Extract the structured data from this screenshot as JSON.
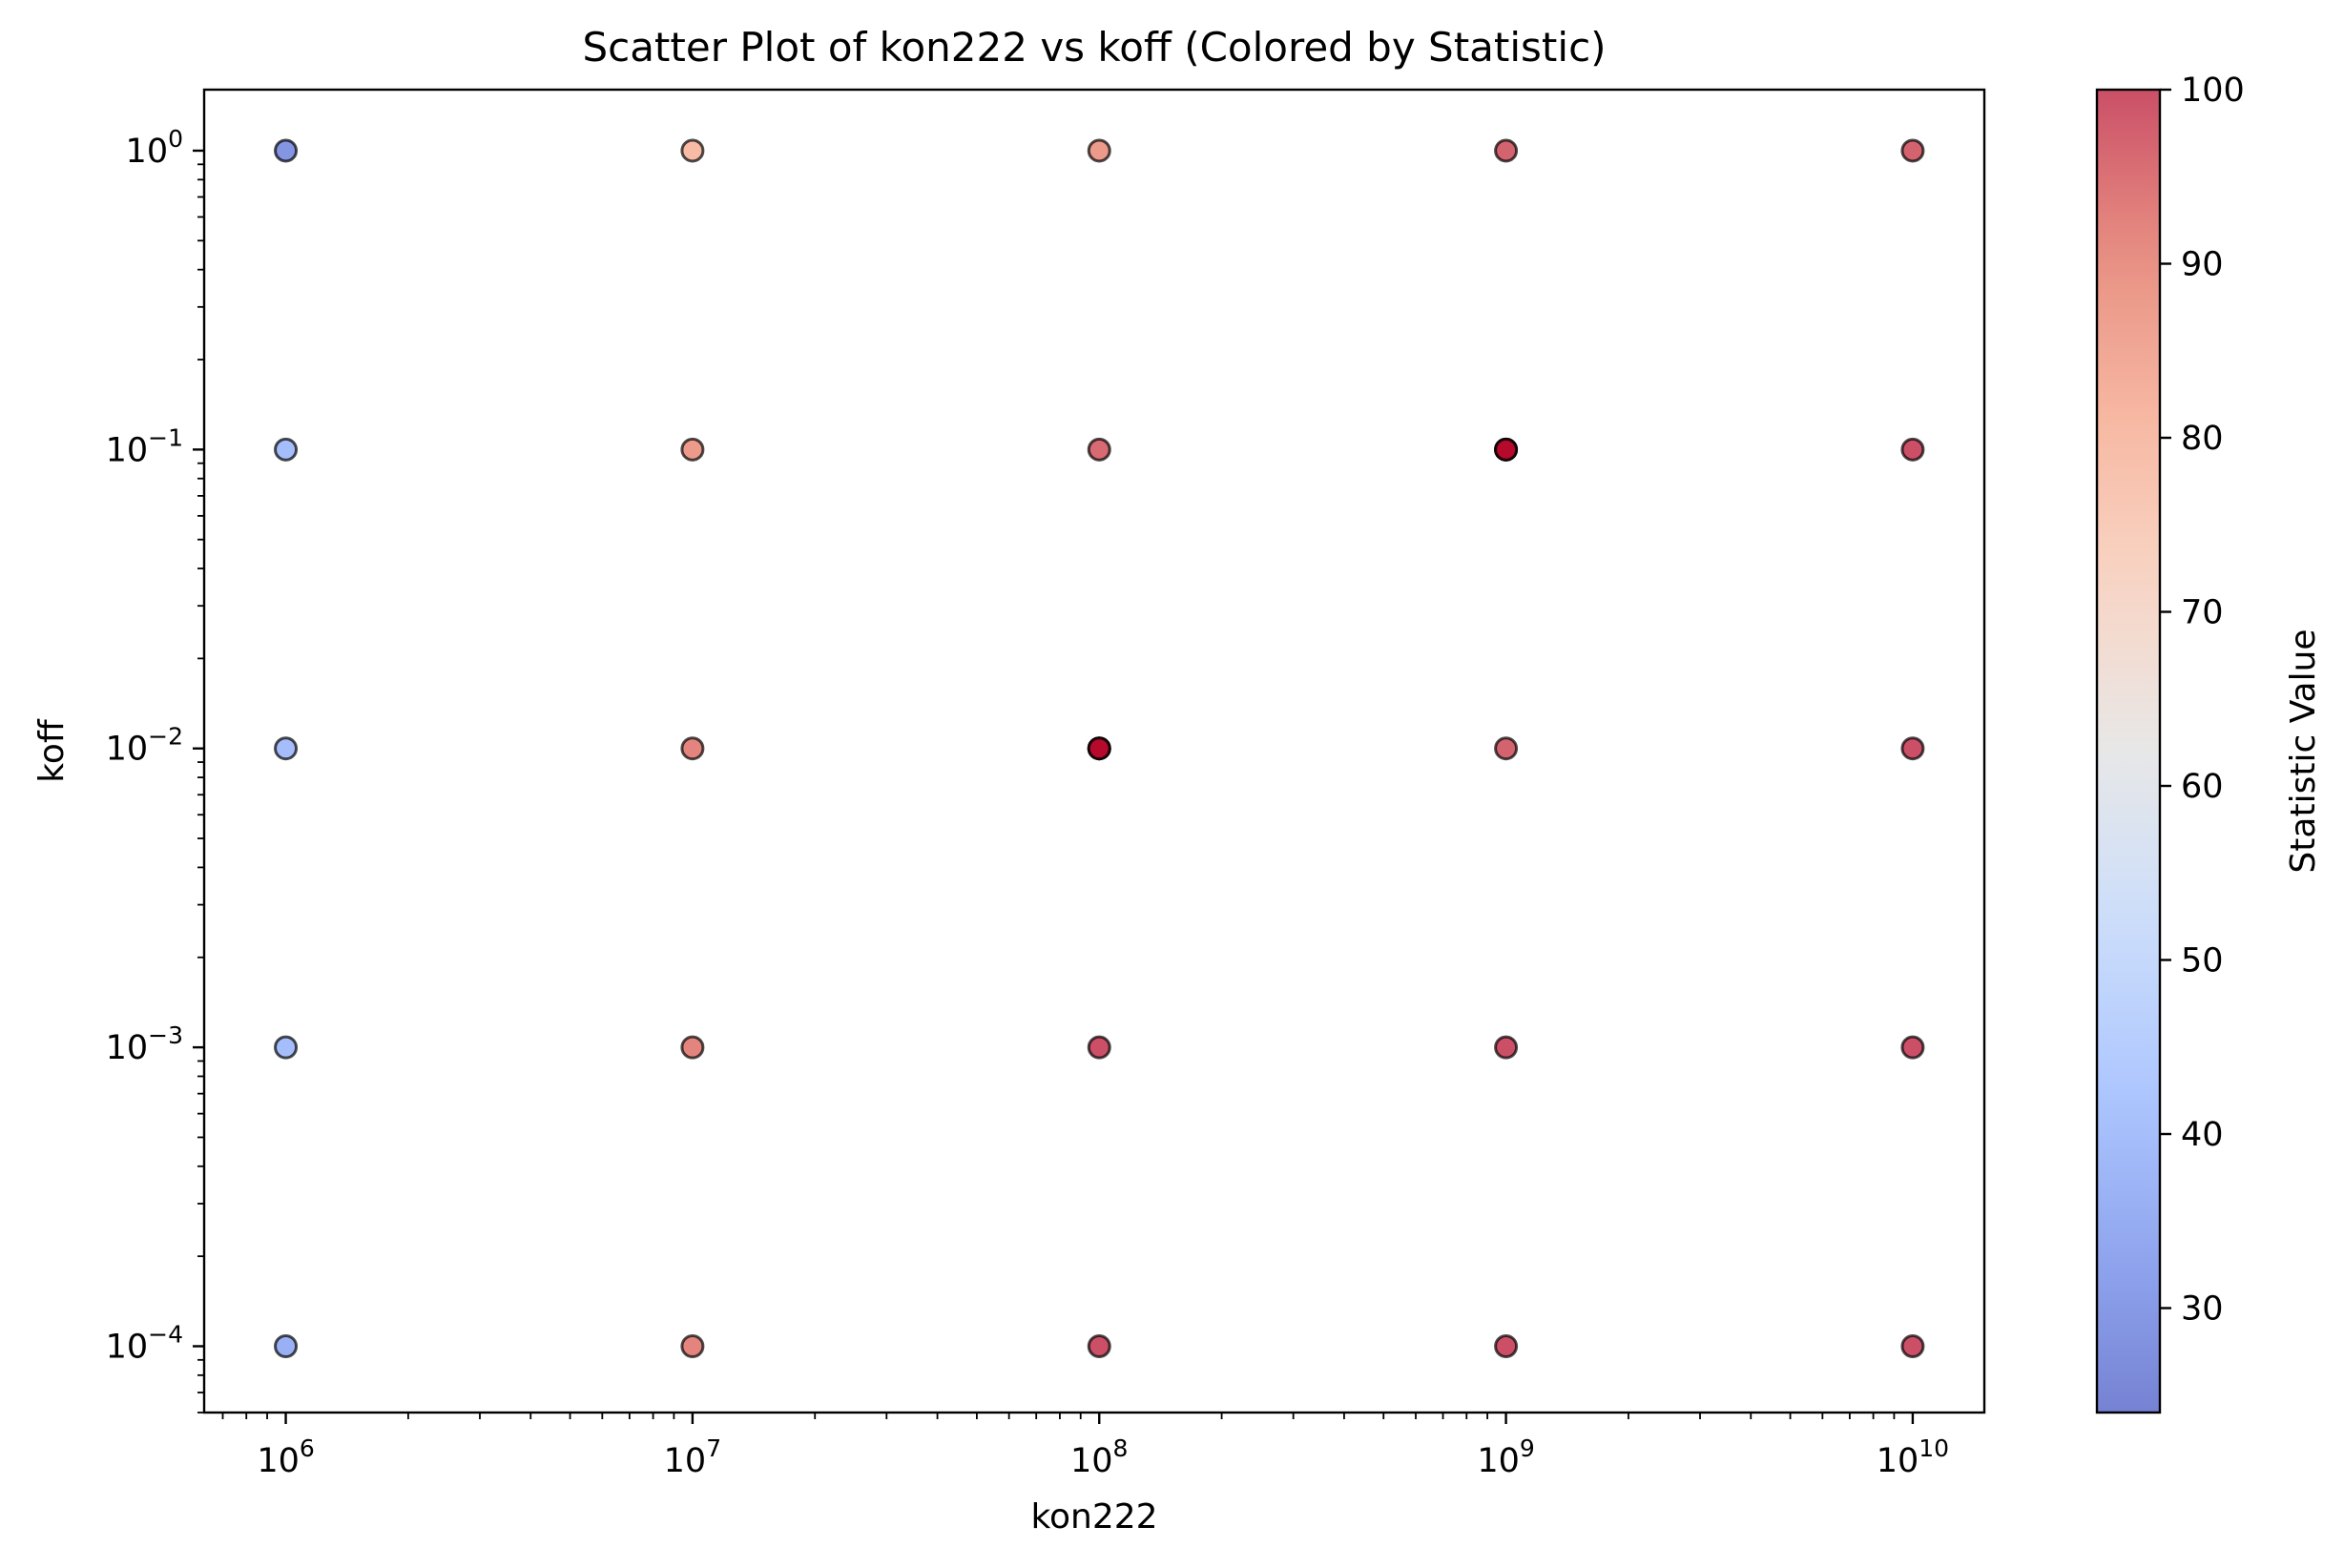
{
  "chart_data": {
    "type": "scatter",
    "title": "Scatter Plot of kon222 vs koff (Colored by Statistic)",
    "xlabel": "kon222",
    "ylabel": "koff",
    "xscale": "log",
    "yscale": "log",
    "xlim": [
      630000,
      15000000000
    ],
    "ylim": [
      6e-05,
      1.6
    ],
    "grid": false,
    "x_ticks": [
      {
        "value": 1000000,
        "base": "10",
        "exp": "6"
      },
      {
        "value": 10000000,
        "base": "10",
        "exp": "7"
      },
      {
        "value": 100000000,
        "base": "10",
        "exp": "8"
      },
      {
        "value": 1000000000,
        "base": "10",
        "exp": "9"
      },
      {
        "value": 10000000000,
        "base": "10",
        "exp": "10"
      }
    ],
    "y_ticks": [
      {
        "value": 1,
        "base": "10",
        "exp": "0"
      },
      {
        "value": 0.1,
        "base": "10",
        "exp": "−1"
      },
      {
        "value": 0.01,
        "base": "10",
        "exp": "−2"
      },
      {
        "value": 0.001,
        "base": "10",
        "exp": "−3"
      },
      {
        "value": 0.0001,
        "base": "10",
        "exp": "−4"
      }
    ],
    "points": [
      {
        "x": 1000000,
        "y": 1,
        "stat": 29
      },
      {
        "x": 1000000,
        "y": 0.1,
        "stat": 40
      },
      {
        "x": 1000000,
        "y": 0.01,
        "stat": 40
      },
      {
        "x": 1000000,
        "y": 0.001,
        "stat": 40
      },
      {
        "x": 1000000,
        "y": 0.0001,
        "stat": 36
      },
      {
        "x": 10000000,
        "y": 1,
        "stat": 80
      },
      {
        "x": 10000000,
        "y": 0.1,
        "stat": 88
      },
      {
        "x": 10000000,
        "y": 0.01,
        "stat": 92
      },
      {
        "x": 10000000,
        "y": 0.001,
        "stat": 92
      },
      {
        "x": 10000000,
        "y": 0.0001,
        "stat": 92
      },
      {
        "x": 100000000,
        "y": 1,
        "stat": 88
      },
      {
        "x": 100000000,
        "y": 0.1,
        "stat": 96
      },
      {
        "x": 100000000,
        "y": 0.01,
        "stat": 100
      },
      {
        "x": 100000000,
        "y": 0.001,
        "stat": 100
      },
      {
        "x": 100000000,
        "y": 0.0001,
        "stat": 100
      },
      {
        "x": 1000000000,
        "y": 1,
        "stat": 97
      },
      {
        "x": 1000000000,
        "y": 0.1,
        "stat": 100
      },
      {
        "x": 1000000000,
        "y": 0.01,
        "stat": 97
      },
      {
        "x": 1000000000,
        "y": 0.001,
        "stat": 100
      },
      {
        "x": 1000000000,
        "y": 0.0001,
        "stat": 100
      },
      {
        "x": 10000000000,
        "y": 1,
        "stat": 97
      },
      {
        "x": 10000000000,
        "y": 0.1,
        "stat": 100
      },
      {
        "x": 10000000000,
        "y": 0.01,
        "stat": 100
      },
      {
        "x": 10000000000,
        "y": 0.001,
        "stat": 100
      },
      {
        "x": 10000000000,
        "y": 0.0001,
        "stat": 100
      }
    ],
    "dense_points": [
      {
        "x": 1000000000,
        "y": 0.1
      },
      {
        "x": 100000000,
        "y": 0.01
      }
    ],
    "colorbar": {
      "label": "Statistic Value",
      "colormap": "coolwarm",
      "range": [
        24,
        100
      ],
      "ticks": [
        30,
        40,
        50,
        60,
        70,
        80,
        90,
        100
      ]
    },
    "marker_alpha": 0.7,
    "marker_edge_color": "#000000"
  }
}
